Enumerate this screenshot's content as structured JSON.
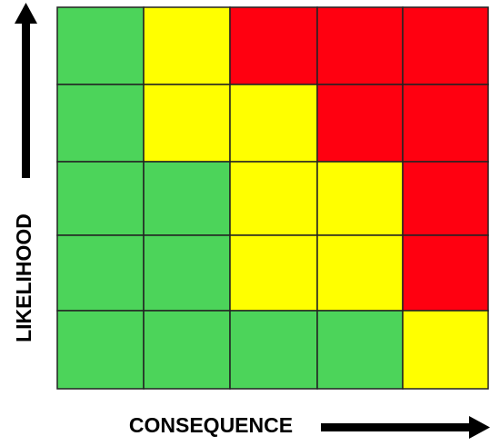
{
  "axes": {
    "y_label": "LIKELIHOOD",
    "x_label": "CONSEQUENCE"
  },
  "matrix": {
    "rows": [
      [
        "#4cd45a",
        "#ffff00",
        "#ff0010",
        "#ff0010",
        "#ff0010"
      ],
      [
        "#4cd45a",
        "#ffff00",
        "#ffff00",
        "#ff0010",
        "#ff0010"
      ],
      [
        "#4cd45a",
        "#4cd45a",
        "#ffff00",
        "#ffff00",
        "#ff0010"
      ],
      [
        "#4cd45a",
        "#4cd45a",
        "#ffff00",
        "#ffff00",
        "#ff0010"
      ],
      [
        "#4cd45a",
        "#4cd45a",
        "#4cd45a",
        "#4cd45a",
        "#ffff00"
      ]
    ]
  }
}
